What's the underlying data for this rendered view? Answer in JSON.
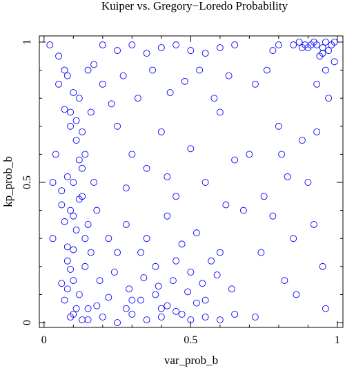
{
  "chart_data": {
    "type": "scatter",
    "title": "Kuiper vs. Gregory−Loredo Probability",
    "x_label": "var_prob_b",
    "y_label": "kp_prob_b",
    "color": "#0000ff",
    "xlim": [
      -0.016,
      1.019
    ],
    "ylim": [
      -0.017,
      1.022
    ],
    "xticks": [
      0,
      0.5,
      1
    ],
    "yticks": [
      0,
      0.5,
      1
    ],
    "xminorticks": [
      0.1,
      0.2,
      0.3,
      0.4,
      0.6,
      0.7,
      0.8,
      0.9
    ],
    "yminorticks": [
      0.1,
      0.2,
      0.3,
      0.4,
      0.6,
      0.7,
      0.8,
      0.9
    ],
    "x": [
      0.02,
      0.05,
      0.08,
      0.1,
      0.12,
      0.07,
      0.09,
      0.11,
      0.04,
      0.13,
      0.08,
      0.1,
      0.06,
      0.12,
      0.09,
      0.07,
      0.11,
      0.03,
      0.1,
      0.08,
      0.09,
      0.1,
      0.08,
      0.12,
      0.07,
      0.11,
      0.1,
      0.09,
      0.13,
      0.06,
      0.15,
      0.2,
      0.25,
      0.3,
      0.35,
      0.4,
      0.45,
      0.5,
      0.55,
      0.6,
      0.18,
      0.22,
      0.28,
      0.33,
      0.38,
      0.42,
      0.47,
      0.52,
      0.65,
      0.72,
      0.2,
      0.25,
      0.3,
      0.35,
      0.4,
      0.45,
      0.5,
      0.55,
      0.6,
      0.65,
      0.85,
      0.87,
      0.89,
      0.9,
      0.92,
      0.93,
      0.95,
      0.96,
      0.98,
      0.99,
      0.97,
      0.95,
      0.91,
      0.88,
      0.94,
      0.99,
      0.96,
      0.93,
      0.8,
      0.78,
      0.2,
      0.25,
      0.3,
      0.35,
      0.4,
      0.45,
      0.5,
      0.55,
      0.6,
      0.65,
      0.18,
      0.22,
      0.28,
      0.33,
      0.38,
      0.42,
      0.47,
      0.52,
      0.57,
      0.62,
      0.17,
      0.23,
      0.27,
      0.32,
      0.37,
      0.43,
      0.48,
      0.53,
      0.58,
      0.63,
      0.19,
      0.24,
      0.29,
      0.34,
      0.39,
      0.44,
      0.49,
      0.54,
      0.59,
      0.64,
      0.7,
      0.75,
      0.8,
      0.85,
      0.9,
      0.95,
      0.72,
      0.78,
      0.83,
      0.88,
      0.92,
      0.97,
      0.74,
      0.82,
      0.86,
      0.93,
      0.96,
      0.68,
      0.76,
      0.81,
      0.05,
      0.07,
      0.09,
      0.11,
      0.13,
      0.03,
      0.06,
      0.1,
      0.14,
      0.08,
      0.15,
      0.16,
      0.14,
      0.17,
      0.15,
      0.16,
      0.13,
      0.12,
      0.15,
      0.14,
      0.25,
      0.3,
      0.35,
      0.4,
      0.45,
      0.5,
      0.55,
      0.6,
      0.28,
      0.42
    ],
    "values": [
      0.99,
      0.95,
      0.88,
      0.82,
      0.8,
      0.76,
      0.7,
      0.65,
      0.6,
      0.55,
      0.52,
      0.5,
      0.47,
      0.44,
      0.4,
      0.36,
      0.33,
      0.3,
      0.26,
      0.22,
      0.19,
      0.15,
      0.12,
      0.1,
      0.08,
      0.05,
      0.03,
      0.02,
      0.01,
      0.14,
      0.01,
      0.02,
      0.0,
      0.03,
      0.01,
      0.02,
      0.04,
      0.01,
      0.02,
      0.01,
      0.06,
      0.09,
      0.05,
      0.08,
      0.1,
      0.06,
      0.03,
      0.07,
      0.03,
      0.02,
      0.99,
      0.97,
      0.99,
      0.96,
      0.98,
      0.99,
      0.97,
      0.96,
      0.98,
      0.99,
      0.99,
      1.0,
      0.99,
      0.98,
      1.0,
      0.99,
      0.98,
      1.0,
      0.99,
      1.0,
      0.97,
      0.96,
      0.99,
      0.98,
      0.95,
      0.93,
      0.9,
      0.85,
      0.99,
      0.97,
      0.85,
      0.7,
      0.6,
      0.55,
      0.68,
      0.45,
      0.62,
      0.5,
      0.75,
      0.58,
      0.4,
      0.3,
      0.35,
      0.25,
      0.2,
      0.38,
      0.28,
      0.32,
      0.22,
      0.42,
      0.92,
      0.78,
      0.88,
      0.8,
      0.9,
      0.82,
      0.86,
      0.9,
      0.8,
      0.88,
      0.15,
      0.18,
      0.12,
      0.16,
      0.13,
      0.15,
      0.11,
      0.14,
      0.17,
      0.12,
      0.6,
      0.45,
      0.7,
      0.3,
      0.5,
      0.2,
      0.85,
      0.38,
      0.52,
      0.65,
      0.35,
      0.8,
      0.25,
      0.15,
      0.1,
      0.68,
      0.05,
      0.4,
      0.9,
      0.6,
      0.85,
      0.9,
      0.75,
      0.72,
      0.68,
      0.5,
      0.42,
      0.38,
      0.3,
      0.27,
      0.9,
      0.75,
      0.6,
      0.5,
      0.35,
      0.25,
      0.45,
      0.58,
      0.05,
      0.2,
      0.25,
      0.08,
      0.3,
      0.05,
      0.22,
      0.18,
      0.08,
      0.25,
      0.48,
      0.52
    ]
  }
}
